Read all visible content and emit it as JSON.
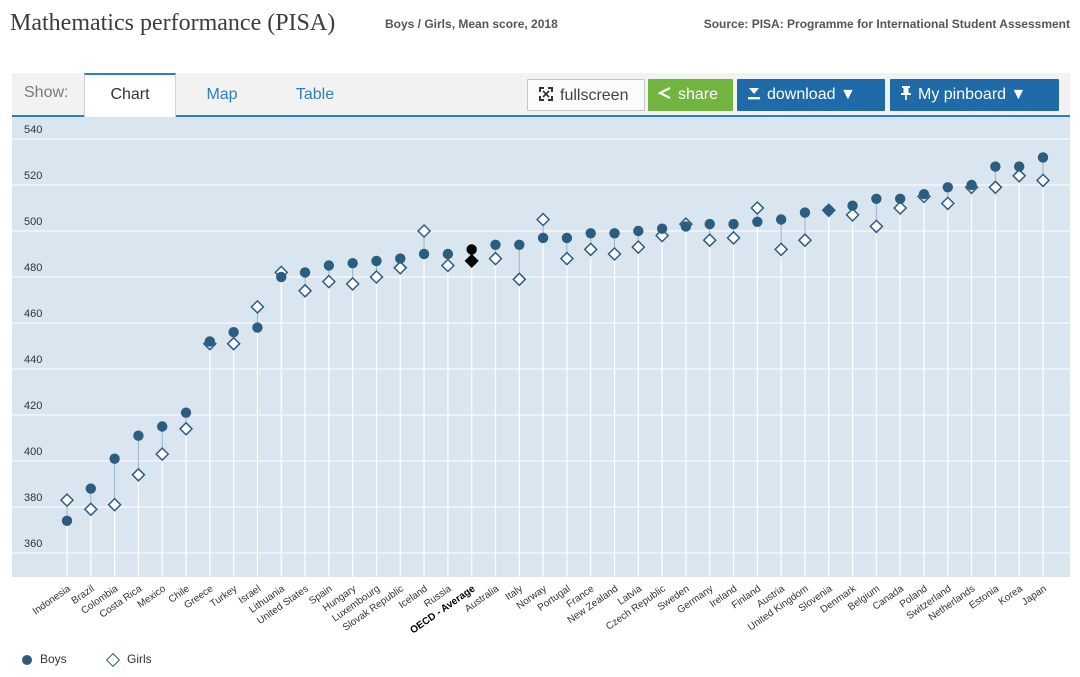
{
  "header": {
    "title": "Mathematics performance (PISA)",
    "subtitle": "Boys / Girls, Mean score, 2018",
    "source": "Source: PISA: Programme for International Student Assessment"
  },
  "toolbar": {
    "show_label": "Show:",
    "tabs": [
      {
        "label": "Chart",
        "active": true
      },
      {
        "label": "Map",
        "active": false
      },
      {
        "label": "Table",
        "active": false
      }
    ],
    "fullscreen_label": "fullscreen",
    "share_label": "share",
    "download_label": "download ▼",
    "pinboard_label": "My pinboard ▼",
    "icons": {
      "fullscreen": "expand-icon",
      "share": "share-icon",
      "download": "download-icon",
      "pinboard": "pin-icon"
    }
  },
  "colors": {
    "plot_background": "#d9e6f0",
    "marker": "#2a5d80",
    "highlight_marker": "#000000",
    "accent": "#2e7fbf",
    "share_button": "#71b540",
    "primary_button": "#1f6aa8"
  },
  "chart_data": {
    "type": "scatter",
    "title": "Mathematics performance (PISA)",
    "subtitle": "Boys / Girls, Mean score, 2018",
    "ylim": [
      355,
      545
    ],
    "yticks": [
      360,
      380,
      400,
      420,
      440,
      460,
      480,
      500,
      520,
      540
    ],
    "highlight_category": "OECD - Average",
    "categories": [
      "Indonesia",
      "Brazil",
      "Colombia",
      "Costa Rica",
      "Mexico",
      "Chile",
      "Greece",
      "Turkey",
      "Israel",
      "Lithuania",
      "United States",
      "Spain",
      "Hungary",
      "Luxembourg",
      "Slovak Republic",
      "Iceland",
      "Russia",
      "OECD - Average",
      "Australia",
      "Italy",
      "Norway",
      "Portugal",
      "France",
      "New Zealand",
      "Latvia",
      "Czech Republic",
      "Sweden",
      "Germany",
      "Ireland",
      "Finland",
      "Austria",
      "United Kingdom",
      "Slovenia",
      "Denmark",
      "Belgium",
      "Canada",
      "Poland",
      "Switzerland",
      "Netherlands",
      "Estonia",
      "Korea",
      "Japan"
    ],
    "series": [
      {
        "name": "Boys",
        "marker": "dot",
        "values": [
          374,
          388,
          401,
          411,
          415,
          421,
          452,
          456,
          458,
          480,
          482,
          485,
          486,
          487,
          488,
          490,
          490,
          492,
          494,
          494,
          497,
          497,
          499,
          499,
          500,
          501,
          502,
          503,
          503,
          504,
          505,
          508,
          509,
          511,
          514,
          514,
          516,
          519,
          520,
          528,
          528,
          532
        ]
      },
      {
        "name": "Girls",
        "marker": "diamond",
        "values": [
          383,
          379,
          381,
          394,
          403,
          414,
          451,
          451,
          467,
          482,
          474,
          478,
          477,
          480,
          484,
          500,
          485,
          487,
          488,
          479,
          505,
          488,
          492,
          490,
          493,
          498,
          503,
          496,
          497,
          510,
          492,
          496,
          509,
          507,
          502,
          510,
          515,
          512,
          519,
          519,
          524,
          522
        ]
      }
    ]
  }
}
